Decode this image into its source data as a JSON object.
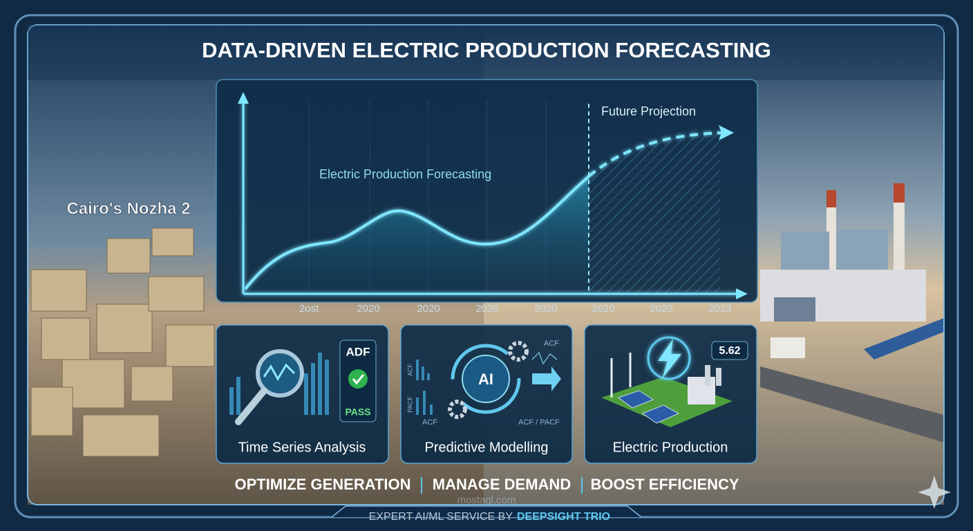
{
  "header": {
    "title": "DATA-DRIVEN ELECTRIC PRODUCTION FORECASTING"
  },
  "location_label": "Cairo's Nozha 2",
  "chart": {
    "series_label": "Electric Production Forecasting",
    "projection_label": "Future Projection",
    "x_labels": [
      "2ost",
      "2020",
      "2020",
      "2020",
      "2020",
      "2020",
      "2020",
      "2023"
    ]
  },
  "cards": [
    {
      "title": "Time Series Analysis",
      "badges": [
        "ADF",
        "PASS"
      ]
    },
    {
      "title": "Predictive Modelling",
      "icon_text": "AI",
      "labels": [
        "ACF",
        "PACF",
        "ACF",
        "ACF / PACF",
        "ACF"
      ]
    },
    {
      "title": "Electric Production",
      "badge": "5.62"
    }
  ],
  "taglines": [
    "OPTIMIZE GENERATION",
    "MANAGE DEMAND",
    "BOOST EFFICIENCY"
  ],
  "footer": {
    "prefix": "EXPERT AI/ML SERVICE BY",
    "brand": "DEEPSIGHT TRIO"
  },
  "watermark": "mostaql.com"
}
